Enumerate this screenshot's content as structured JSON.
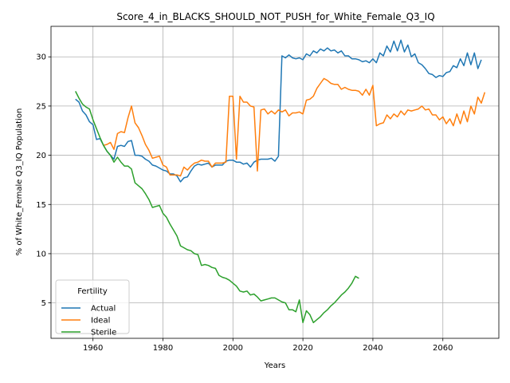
{
  "chart_data": {
    "type": "line",
    "title": "Score_4_in_BLACKS_SHOULD_NOT_PUSH_for_White_Female_Q3_IQ",
    "xlabel": "Years",
    "ylabel": "% of White_Female Q3_IQ Population",
    "xlim": [
      1948,
      2076
    ],
    "ylim": [
      1.4,
      33.1
    ],
    "xticks": [
      1960,
      1980,
      2000,
      2020,
      2040,
      2060
    ],
    "yticks": [
      5,
      10,
      15,
      20,
      25,
      30
    ],
    "grid": true,
    "legend": {
      "title": "Fertility",
      "position": "lower-left"
    },
    "series": [
      {
        "name": "Actual",
        "color": "#1f77b4",
        "points": [
          [
            1955,
            25.7
          ],
          [
            1956,
            25.4
          ],
          [
            1957,
            24.5
          ],
          [
            1958,
            24.1
          ],
          [
            1959,
            23.4
          ],
          [
            1960,
            23.1
          ],
          [
            1961,
            21.6
          ],
          [
            1962,
            21.7
          ],
          [
            1963,
            21.0
          ],
          [
            1964,
            20.4
          ],
          [
            1965,
            20.0
          ],
          [
            1966,
            19.6
          ],
          [
            1967,
            20.9
          ],
          [
            1968,
            21.0
          ],
          [
            1969,
            20.9
          ],
          [
            1970,
            21.4
          ],
          [
            1971,
            21.5
          ],
          [
            1972,
            20.0
          ],
          [
            1973,
            20.0
          ],
          [
            1974,
            19.9
          ],
          [
            1975,
            19.6
          ],
          [
            1976,
            19.4
          ],
          [
            1977,
            19.0
          ],
          [
            1978,
            18.9
          ],
          [
            1979,
            18.7
          ],
          [
            1980,
            18.5
          ],
          [
            1981,
            18.4
          ],
          [
            1982,
            18.1
          ],
          [
            1983,
            18.1
          ],
          [
            1984,
            17.9
          ],
          [
            1985,
            17.3
          ],
          [
            1986,
            17.7
          ],
          [
            1987,
            17.8
          ],
          [
            1988,
            18.4
          ],
          [
            1989,
            18.9
          ],
          [
            1990,
            19.1
          ],
          [
            1991,
            19.0
          ],
          [
            1992,
            19.1
          ],
          [
            1993,
            19.2
          ],
          [
            1994,
            18.8
          ],
          [
            1995,
            19.0
          ],
          [
            1996,
            19.0
          ],
          [
            1997,
            19.0
          ],
          [
            1998,
            19.4
          ],
          [
            1999,
            19.5
          ],
          [
            2000,
            19.5
          ],
          [
            2001,
            19.3
          ],
          [
            2002,
            19.3
          ],
          [
            2003,
            19.1
          ],
          [
            2004,
            19.2
          ],
          [
            2005,
            18.8
          ],
          [
            2006,
            19.3
          ],
          [
            2007,
            19.5
          ],
          [
            2008,
            19.6
          ],
          [
            2009,
            19.6
          ],
          [
            2010,
            19.6
          ],
          [
            2011,
            19.7
          ],
          [
            2012,
            19.4
          ],
          [
            2013,
            19.9
          ],
          [
            2014,
            30.1
          ],
          [
            2015,
            29.9
          ],
          [
            2016,
            30.2
          ],
          [
            2017,
            29.9
          ],
          [
            2018,
            29.8
          ],
          [
            2019,
            29.9
          ],
          [
            2020,
            29.7
          ],
          [
            2021,
            30.3
          ],
          [
            2022,
            30.1
          ],
          [
            2023,
            30.6
          ],
          [
            2024,
            30.4
          ],
          [
            2025,
            30.8
          ],
          [
            2026,
            30.6
          ],
          [
            2027,
            30.9
          ],
          [
            2028,
            30.6
          ],
          [
            2029,
            30.7
          ],
          [
            2030,
            30.4
          ],
          [
            2031,
            30.6
          ],
          [
            2032,
            30.1
          ],
          [
            2033,
            30.1
          ],
          [
            2034,
            29.8
          ],
          [
            2035,
            29.8
          ],
          [
            2036,
            29.7
          ],
          [
            2037,
            29.5
          ],
          [
            2038,
            29.6
          ],
          [
            2039,
            29.4
          ],
          [
            2040,
            29.8
          ],
          [
            2041,
            29.4
          ],
          [
            2042,
            30.4
          ],
          [
            2043,
            30.1
          ],
          [
            2044,
            31.1
          ],
          [
            2045,
            30.5
          ],
          [
            2046,
            31.6
          ],
          [
            2047,
            30.6
          ],
          [
            2048,
            31.7
          ],
          [
            2049,
            30.5
          ],
          [
            2050,
            31.2
          ],
          [
            2051,
            30.0
          ],
          [
            2052,
            30.3
          ],
          [
            2053,
            29.4
          ],
          [
            2054,
            29.2
          ],
          [
            2055,
            28.8
          ],
          [
            2056,
            28.3
          ],
          [
            2057,
            28.2
          ],
          [
            2058,
            27.9
          ],
          [
            2059,
            28.1
          ],
          [
            2060,
            28.0
          ],
          [
            2061,
            28.4
          ],
          [
            2062,
            28.5
          ],
          [
            2063,
            29.1
          ],
          [
            2064,
            28.9
          ],
          [
            2065,
            29.8
          ],
          [
            2066,
            29.1
          ],
          [
            2067,
            30.4
          ],
          [
            2068,
            29.2
          ],
          [
            2069,
            30.4
          ],
          [
            2070,
            28.8
          ],
          [
            2071,
            29.7
          ]
        ]
      },
      {
        "name": "Ideal",
        "color": "#ff7f0e",
        "points": [
          [
            1963,
            21.0
          ],
          [
            1964,
            21.1
          ],
          [
            1965,
            21.3
          ],
          [
            1966,
            20.6
          ],
          [
            1967,
            22.2
          ],
          [
            1968,
            22.4
          ],
          [
            1969,
            22.3
          ],
          [
            1970,
            23.8
          ],
          [
            1971,
            25.0
          ],
          [
            1972,
            23.3
          ],
          [
            1973,
            22.8
          ],
          [
            1974,
            22.0
          ],
          [
            1975,
            21.1
          ],
          [
            1976,
            20.5
          ],
          [
            1977,
            19.7
          ],
          [
            1978,
            19.8
          ],
          [
            1979,
            19.9
          ],
          [
            1980,
            19.0
          ],
          [
            1981,
            18.8
          ],
          [
            1982,
            18.0
          ],
          [
            1983,
            18.0
          ],
          [
            1984,
            18.0
          ],
          [
            1985,
            17.9
          ],
          [
            1986,
            18.8
          ],
          [
            1987,
            18.5
          ],
          [
            1988,
            18.9
          ],
          [
            1989,
            19.2
          ],
          [
            1990,
            19.3
          ],
          [
            1991,
            19.5
          ],
          [
            1992,
            19.4
          ],
          [
            1993,
            19.4
          ],
          [
            1994,
            18.8
          ],
          [
            1995,
            19.2
          ],
          [
            1996,
            19.2
          ],
          [
            1997,
            19.2
          ],
          [
            1998,
            19.3
          ],
          [
            1999,
            26.0
          ],
          [
            2000,
            26.0
          ],
          [
            2001,
            19.6
          ],
          [
            2002,
            26.0
          ],
          [
            2003,
            25.4
          ],
          [
            2004,
            25.4
          ],
          [
            2005,
            25.0
          ],
          [
            2006,
            24.9
          ],
          [
            2007,
            18.4
          ],
          [
            2008,
            24.6
          ],
          [
            2009,
            24.7
          ],
          [
            2010,
            24.2
          ],
          [
            2011,
            24.5
          ],
          [
            2012,
            24.2
          ],
          [
            2013,
            24.6
          ],
          [
            2014,
            24.4
          ],
          [
            2015,
            24.6
          ],
          [
            2016,
            24.0
          ],
          [
            2017,
            24.3
          ],
          [
            2018,
            24.3
          ],
          [
            2019,
            24.4
          ],
          [
            2020,
            24.2
          ],
          [
            2021,
            25.6
          ],
          [
            2022,
            25.7
          ],
          [
            2023,
            26.0
          ],
          [
            2024,
            26.8
          ],
          [
            2025,
            27.3
          ],
          [
            2026,
            27.8
          ],
          [
            2027,
            27.6
          ],
          [
            2028,
            27.3
          ],
          [
            2029,
            27.2
          ],
          [
            2030,
            27.2
          ],
          [
            2031,
            26.7
          ],
          [
            2032,
            26.9
          ],
          [
            2033,
            26.7
          ],
          [
            2034,
            26.6
          ],
          [
            2035,
            26.6
          ],
          [
            2036,
            26.5
          ],
          [
            2037,
            26.1
          ],
          [
            2038,
            26.7
          ],
          [
            2039,
            26.1
          ],
          [
            2040,
            27.1
          ],
          [
            2041,
            23.0
          ],
          [
            2042,
            23.2
          ],
          [
            2043,
            23.3
          ],
          [
            2044,
            24.1
          ],
          [
            2045,
            23.7
          ],
          [
            2046,
            24.2
          ],
          [
            2047,
            23.9
          ],
          [
            2048,
            24.5
          ],
          [
            2049,
            24.1
          ],
          [
            2050,
            24.6
          ],
          [
            2051,
            24.5
          ],
          [
            2052,
            24.6
          ],
          [
            2053,
            24.7
          ],
          [
            2054,
            25.0
          ],
          [
            2055,
            24.6
          ],
          [
            2056,
            24.7
          ],
          [
            2057,
            24.1
          ],
          [
            2058,
            24.1
          ],
          [
            2059,
            23.6
          ],
          [
            2060,
            23.9
          ],
          [
            2061,
            23.2
          ],
          [
            2062,
            23.7
          ],
          [
            2063,
            23.0
          ],
          [
            2064,
            24.2
          ],
          [
            2065,
            23.2
          ],
          [
            2066,
            24.5
          ],
          [
            2067,
            23.4
          ],
          [
            2068,
            25.0
          ],
          [
            2069,
            24.2
          ],
          [
            2070,
            25.9
          ],
          [
            2071,
            25.3
          ],
          [
            2072,
            26.4
          ]
        ]
      },
      {
        "name": "Sterile",
        "color": "#2ca02c",
        "points": [
          [
            1955,
            26.5
          ],
          [
            1956,
            25.8
          ],
          [
            1957,
            25.2
          ],
          [
            1958,
            24.9
          ],
          [
            1959,
            24.7
          ],
          [
            1960,
            23.6
          ],
          [
            1961,
            22.7
          ],
          [
            1962,
            21.8
          ],
          [
            1963,
            21.0
          ],
          [
            1964,
            20.4
          ],
          [
            1965,
            20.0
          ],
          [
            1966,
            19.3
          ],
          [
            1967,
            19.8
          ],
          [
            1968,
            19.3
          ],
          [
            1969,
            18.9
          ],
          [
            1970,
            18.9
          ],
          [
            1971,
            18.6
          ],
          [
            1972,
            17.2
          ],
          [
            1973,
            16.9
          ],
          [
            1974,
            16.6
          ],
          [
            1975,
            16.1
          ],
          [
            1976,
            15.5
          ],
          [
            1977,
            14.7
          ],
          [
            1978,
            14.8
          ],
          [
            1979,
            14.9
          ],
          [
            1980,
            14.1
          ],
          [
            1981,
            13.7
          ],
          [
            1982,
            13.0
          ],
          [
            1983,
            12.4
          ],
          [
            1984,
            11.8
          ],
          [
            1985,
            10.8
          ],
          [
            1986,
            10.6
          ],
          [
            1987,
            10.4
          ],
          [
            1988,
            10.3
          ],
          [
            1989,
            10.0
          ],
          [
            1990,
            9.9
          ],
          [
            1991,
            8.8
          ],
          [
            1992,
            8.9
          ],
          [
            1993,
            8.8
          ],
          [
            1994,
            8.6
          ],
          [
            1995,
            8.5
          ],
          [
            1996,
            7.8
          ],
          [
            1997,
            7.6
          ],
          [
            1998,
            7.5
          ],
          [
            1999,
            7.3
          ],
          [
            2000,
            7.0
          ],
          [
            2001,
            6.7
          ],
          [
            2002,
            6.2
          ],
          [
            2003,
            6.1
          ],
          [
            2004,
            6.2
          ],
          [
            2005,
            5.8
          ],
          [
            2006,
            5.9
          ],
          [
            2007,
            5.6
          ],
          [
            2008,
            5.2
          ],
          [
            2009,
            5.3
          ],
          [
            2010,
            5.4
          ],
          [
            2011,
            5.5
          ],
          [
            2012,
            5.5
          ],
          [
            2013,
            5.3
          ],
          [
            2014,
            5.1
          ],
          [
            2015,
            5.0
          ],
          [
            2016,
            4.3
          ],
          [
            2017,
            4.3
          ],
          [
            2018,
            4.1
          ],
          [
            2019,
            5.3
          ],
          [
            2020,
            3.0
          ],
          [
            2021,
            4.2
          ],
          [
            2022,
            3.8
          ],
          [
            2023,
            3.0
          ],
          [
            2024,
            3.3
          ],
          [
            2025,
            3.6
          ],
          [
            2026,
            4.0
          ],
          [
            2027,
            4.3
          ],
          [
            2028,
            4.7
          ],
          [
            2029,
            5.0
          ],
          [
            2030,
            5.4
          ],
          [
            2031,
            5.8
          ],
          [
            2032,
            6.1
          ],
          [
            2033,
            6.5
          ],
          [
            2034,
            7.0
          ],
          [
            2035,
            7.7
          ],
          [
            2036,
            7.5
          ]
        ]
      }
    ]
  }
}
